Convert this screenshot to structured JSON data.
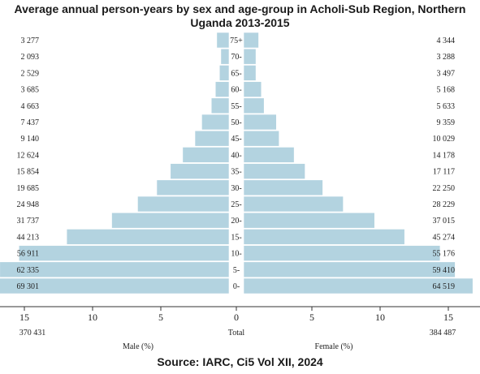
{
  "title_line1": "Average annual person-years by sex and age-group in Acholi-Sub Region, Northern",
  "title_line2": "Uganda  2013-2015",
  "source": "Source: IARC,  Ci5 Vol XII, 2024",
  "colors": {
    "bar": "#b3d3e0",
    "bar_edge": "#ffffff",
    "axis": "#333333"
  },
  "chart_data": {
    "type": "bar",
    "orientation": "horizontal-pyramid",
    "categories": [
      "75+",
      "70-",
      "65-",
      "60-",
      "55-",
      "50-",
      "45-",
      "40-",
      "35-",
      "30-",
      "25-",
      "20-",
      "15-",
      "10-",
      "5-",
      "0-"
    ],
    "series": [
      {
        "side": "left",
        "counts": [
          "3 277",
          "2 093",
          "2 529",
          "3 685",
          "4 663",
          "7 437",
          "9 140",
          "12 624",
          "15 854",
          "19 685",
          "24 948",
          "31 737",
          "44 213",
          "56 911",
          "62 335",
          "69 301"
        ],
        "percent": [
          0.9,
          0.6,
          0.7,
          1.0,
          1.3,
          2.0,
          2.5,
          3.4,
          4.3,
          5.3,
          6.7,
          8.6,
          11.9,
          15.4,
          16.8,
          18.7
        ]
      },
      {
        "side": "right",
        "counts": [
          "4 344",
          "3 288",
          "3 497",
          "5 168",
          "5 633",
          "9 359",
          "10 029",
          "14 178",
          "17 117",
          "22 250",
          "28 229",
          "37 015",
          "45 274",
          "55 176",
          "59 410",
          "64 519"
        ],
        "percent": [
          1.1,
          0.9,
          0.9,
          1.3,
          1.5,
          2.4,
          2.6,
          3.7,
          4.5,
          5.8,
          7.3,
          9.6,
          11.8,
          14.4,
          15.5,
          16.8
        ]
      }
    ],
    "x_ticks_left": [
      "15",
      "10",
      "5",
      "0"
    ],
    "x_ticks_right": [
      "5",
      "10",
      "15"
    ],
    "xlim": [
      0,
      15
    ],
    "male_total": "370 431",
    "female_total": "384 487",
    "total_label": "Total",
    "male_axis_label": "Male (%)",
    "female_axis_label": "Female (%)"
  }
}
